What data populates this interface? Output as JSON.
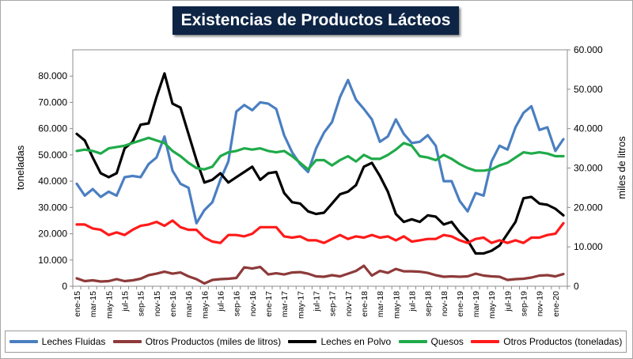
{
  "chart_data": {
    "type": "line",
    "title": "Existencias de Productos Lácteos",
    "ylabel_left": "toneladas",
    "ylabel_right": "miles de litros",
    "ylim_left": [
      0,
      90000
    ],
    "ylim_right": [
      0,
      60000
    ],
    "y_ticks_left": [
      "0",
      "10.000",
      "20.000",
      "30.000",
      "40.000",
      "50.000",
      "60.000",
      "70.000",
      "80.000"
    ],
    "y_ticks_right": [
      "0",
      "10.000",
      "20.000",
      "30.000",
      "40.000",
      "50.000",
      "60.000"
    ],
    "x": [
      "ene-15",
      "feb-15",
      "mar-15",
      "abr-15",
      "may-15",
      "jun-15",
      "jul-15",
      "ago-15",
      "sep-15",
      "oct-15",
      "nov-15",
      "dic-15",
      "ene-16",
      "feb-16",
      "mar-16",
      "abr-16",
      "may-16",
      "jun-16",
      "jul-16",
      "ago-16",
      "sep-16",
      "oct-16",
      "nov-16",
      "dic-16",
      "ene-17",
      "feb-17",
      "mar-17",
      "abr-17",
      "may-17",
      "jun-17",
      "jul-17",
      "ago-17",
      "sep-17",
      "oct-17",
      "nov-17",
      "dic-17",
      "ene-18",
      "feb-18",
      "mar-18",
      "abr-18",
      "may-18",
      "jun-18",
      "jul-18",
      "ago-18",
      "sep-18",
      "oct-18",
      "nov-18",
      "dic-18",
      "ene-19",
      "feb-19",
      "mar-19",
      "abr-19",
      "may-19",
      "jun-19",
      "jul-19",
      "ago-19",
      "sep-19",
      "oct-19",
      "nov-19",
      "dic-19",
      "ene-20",
      "feb-20"
    ],
    "x_tick_labels": [
      "ene-15",
      "mar-15",
      "may-15",
      "jul-15",
      "sep-15",
      "nov-15",
      "ene-16",
      "mar-16",
      "may-16",
      "jul-16",
      "sep-16",
      "nov-16",
      "ene-17",
      "mar-17",
      "may-17",
      "jul-17",
      "sep-17",
      "nov-17",
      "ene-18",
      "mar-18",
      "may-18",
      "jul-18",
      "sep-18",
      "nov-18",
      "ene-19",
      "mar-19",
      "may-19",
      "jul-19",
      "sep-19",
      "nov-19",
      "ene-20"
    ],
    "series": [
      {
        "name": "Leches Fluidas",
        "axis": "left",
        "color": "#4a7fc1",
        "values": [
          39000,
          34500,
          37000,
          34000,
          36000,
          34500,
          41500,
          42000,
          41500,
          46500,
          49000,
          57000,
          44000,
          39000,
          37500,
          24000,
          29000,
          32000,
          40500,
          47500,
          66500,
          69000,
          67000,
          70000,
          69500,
          67500,
          57500,
          51000,
          46500,
          43500,
          52500,
          58500,
          62500,
          72000,
          78500,
          71000,
          67500,
          63500,
          55000,
          57000,
          63500,
          58000,
          54500,
          55000,
          57500,
          53500,
          40000,
          40000,
          32500,
          28500,
          35500,
          34500,
          47500,
          53500,
          52000,
          60500,
          66000,
          68500,
          59500,
          60500,
          51500,
          56000
        ]
      },
      {
        "name": "Otros Productos (miles de litros)",
        "axis": "right",
        "color": "#8e3a3a",
        "values": [
          2000,
          1300,
          1500,
          1200,
          1300,
          1800,
          1300,
          1500,
          1900,
          2800,
          3200,
          3700,
          3200,
          3500,
          2500,
          1800,
          700,
          1600,
          1800,
          1900,
          2100,
          4800,
          4500,
          4900,
          3000,
          3300,
          3000,
          3500,
          3600,
          3200,
          2500,
          2400,
          2800,
          2500,
          3200,
          3900,
          5200,
          2700,
          3900,
          3400,
          4400,
          3800,
          3800,
          3700,
          3400,
          2800,
          2400,
          2500,
          2400,
          2500,
          3200,
          2700,
          2500,
          2400,
          1600,
          1800,
          1900,
          2200,
          2700,
          2800,
          2500,
          3100
        ]
      },
      {
        "name": "Leches en Polvo",
        "axis": "left",
        "color": "#000000",
        "values": [
          58000,
          55500,
          49000,
          43000,
          41500,
          43000,
          52500,
          55000,
          61500,
          62000,
          72000,
          81000,
          69500,
          68000,
          58000,
          48000,
          39500,
          40500,
          43000,
          39500,
          41500,
          43500,
          45500,
          40500,
          43000,
          43500,
          35500,
          32000,
          31500,
          28500,
          27500,
          28000,
          31500,
          35000,
          36000,
          38500,
          45500,
          47000,
          42000,
          36000,
          27500,
          24500,
          25500,
          24500,
          27000,
          26500,
          23500,
          24500,
          20500,
          17500,
          12500,
          12500,
          13500,
          15500,
          20000,
          24500,
          33500,
          34000,
          31500,
          31000,
          29500,
          27000
        ]
      },
      {
        "name": "Quesos",
        "axis": "left",
        "color": "#1faa4a",
        "values": [
          51500,
          52000,
          51500,
          50500,
          52500,
          53000,
          53500,
          54500,
          55500,
          56500,
          55500,
          54500,
          51500,
          49500,
          47000,
          45000,
          44500,
          45500,
          49500,
          51000,
          51500,
          52500,
          52000,
          52500,
          51500,
          51000,
          51500,
          49500,
          47000,
          44500,
          48000,
          48000,
          46000,
          48000,
          49500,
          47500,
          50000,
          48500,
          48500,
          50000,
          52000,
          54500,
          53500,
          49500,
          49000,
          48000,
          50000,
          48500,
          46500,
          45000,
          44000,
          44000,
          44500,
          46000,
          47000,
          49000,
          51000,
          50500,
          51000,
          50500,
          49500,
          49500
        ]
      },
      {
        "name": "Otros Productos (toneladas)",
        "axis": "left",
        "color": "#ff1a1a",
        "values": [
          23500,
          23500,
          22000,
          21500,
          19500,
          20500,
          19500,
          21500,
          23000,
          23500,
          24500,
          23000,
          25000,
          22500,
          21500,
          21500,
          18500,
          17000,
          16500,
          19500,
          19500,
          19000,
          20000,
          22500,
          22500,
          22500,
          19000,
          18500,
          19000,
          17500,
          17500,
          16500,
          18000,
          19500,
          18000,
          19000,
          18500,
          19500,
          18500,
          19000,
          17500,
          19000,
          17000,
          17500,
          18000,
          18000,
          19500,
          19000,
          17500,
          16500,
          18000,
          18500,
          16500,
          17500,
          16500,
          17500,
          16500,
          18500,
          18500,
          19500,
          20000,
          24000
        ]
      }
    ]
  }
}
